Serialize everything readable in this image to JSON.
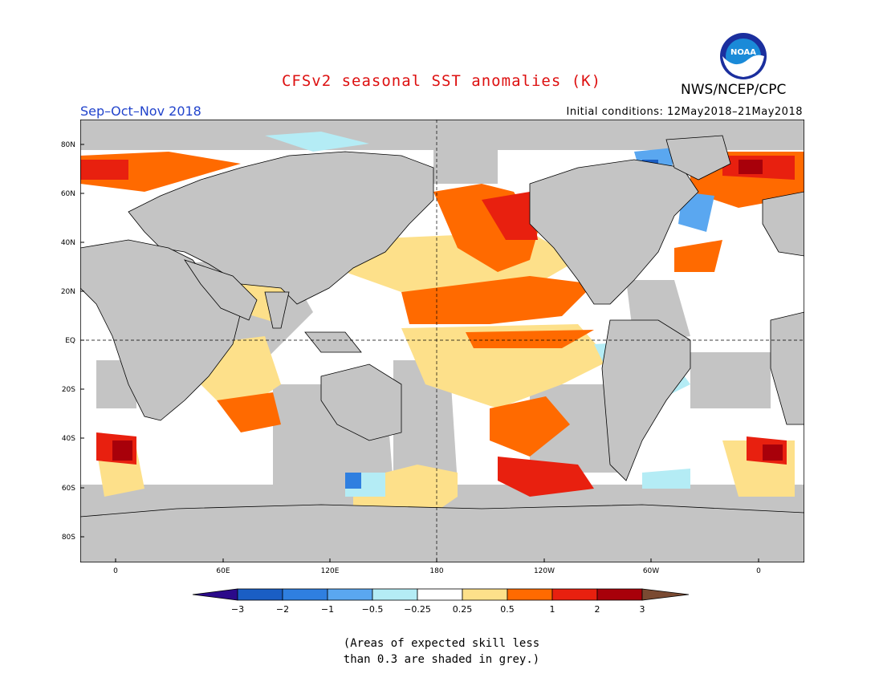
{
  "header": {
    "title": "CFSv2 seasonal SST anomalies (K)",
    "agency": "NWS/NCEP/CPC",
    "season": "Sep–Oct–Nov 2018",
    "initial_conditions": "Initial conditions: 12May2018–21May2018",
    "logo_text": "NOAA"
  },
  "colors": {
    "title": "#dd1010",
    "season": "#2244cc",
    "land": "#c4c4c4",
    "ocean_default": "#ffffff",
    "palette": [
      "#2b0a8a",
      "#1a5ec4",
      "#2f7fe0",
      "#5aa7f0",
      "#b4ecf5",
      "#ffffff",
      "#fde08a",
      "#ff6a00",
      "#e8200f",
      "#a8000a",
      "#7a4a32"
    ]
  },
  "map": {
    "lat_labels": [
      "80N",
      "60N",
      "40N",
      "20N",
      "EQ",
      "20S",
      "40S",
      "60S",
      "80S"
    ],
    "lon_labels": [
      "0",
      "60E",
      "120E",
      "180",
      "120W",
      "60W",
      "0"
    ]
  },
  "colorbar": {
    "tick_labels": [
      "−3",
      "−2",
      "−1",
      "−0.5",
      "−0.25",
      "0.25",
      "0.5",
      "1",
      "2",
      "3"
    ]
  },
  "note": {
    "line1": "(Areas of expected skill less",
    "line2": "than 0.3 are shaded in grey.)"
  }
}
